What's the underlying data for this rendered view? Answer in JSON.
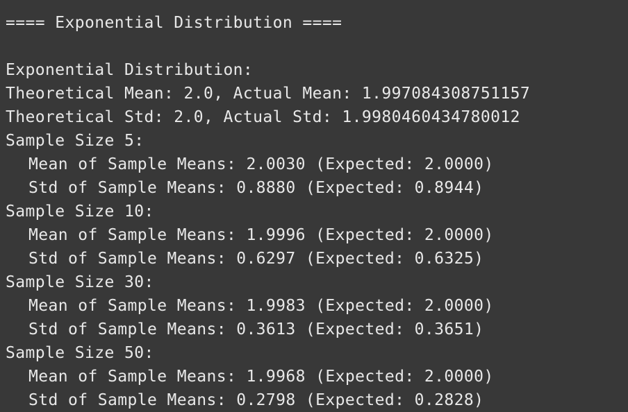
{
  "output": {
    "header": "==== Exponential Distribution ====",
    "section_title": "Exponential Distribution:",
    "theoretical_mean_line": "Theoretical Mean: 2.0, Actual Mean: 1.997084308751157",
    "theoretical_std_line": "Theoretical Std: 2.0, Actual Std: 1.9980460434780012",
    "samples": [
      {
        "label": "Sample Size 5:",
        "mean_line": "Mean of Sample Means: 2.0030 (Expected: 2.0000)",
        "std_line": "Std of Sample Means: 0.8880 (Expected: 0.8944)"
      },
      {
        "label": "Sample Size 10:",
        "mean_line": "Mean of Sample Means: 1.9996 (Expected: 2.0000)",
        "std_line": "Std of Sample Means: 0.6297 (Expected: 0.6325)"
      },
      {
        "label": "Sample Size 30:",
        "mean_line": "Mean of Sample Means: 1.9983 (Expected: 2.0000)",
        "std_line": "Std of Sample Means: 0.3613 (Expected: 0.3651)"
      },
      {
        "label": "Sample Size 50:",
        "mean_line": "Mean of Sample Means: 1.9968 (Expected: 2.0000)",
        "std_line": "Std of Sample Means: 0.2798 (Expected: 0.2828)"
      }
    ]
  }
}
